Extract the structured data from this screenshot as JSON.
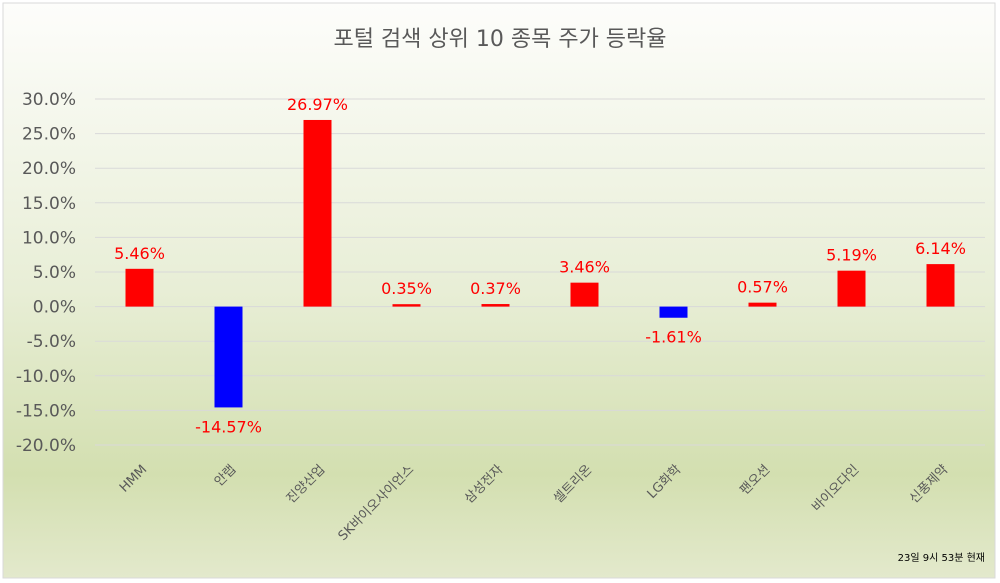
{
  "chart_data": {
    "type": "bar",
    "title": "포털 검색 상위 10 종목 주가 등락율",
    "categories": [
      "HMM",
      "안랩",
      "진양산업",
      "SK바이오사이언스",
      "삼성전자",
      "셀트리온",
      "LG화학",
      "팬오션",
      "바이오다인",
      "신풍제약"
    ],
    "values": [
      5.46,
      -14.57,
      26.97,
      0.35,
      0.37,
      3.46,
      -1.61,
      0.57,
      5.19,
      6.14
    ],
    "data_labels": [
      "5.46%",
      "-14.57%",
      "26.97%",
      "0.35%",
      "0.37%",
      "3.46%",
      "-1.61%",
      "0.57%",
      "5.19%",
      "6.14%"
    ],
    "ylim": [
      -20,
      30
    ],
    "yticks": [
      30,
      25,
      20,
      15,
      10,
      5,
      0,
      -5,
      -10,
      -15,
      -20
    ],
    "ytick_labels": [
      "30.0%",
      "25.0%",
      "20.0%",
      "15.0%",
      "10.0%",
      "5.0%",
      "0.0%",
      "-5.0%",
      "-10.0%",
      "-15.0%",
      "-20.0%"
    ],
    "xlabel": "",
    "ylabel": "",
    "grid": true,
    "legend": "none",
    "annotation": "23일 9시 53분 현재",
    "colors": {
      "positive": "#ff0000",
      "negative": "#0000ff",
      "label": "#ff0000"
    }
  }
}
